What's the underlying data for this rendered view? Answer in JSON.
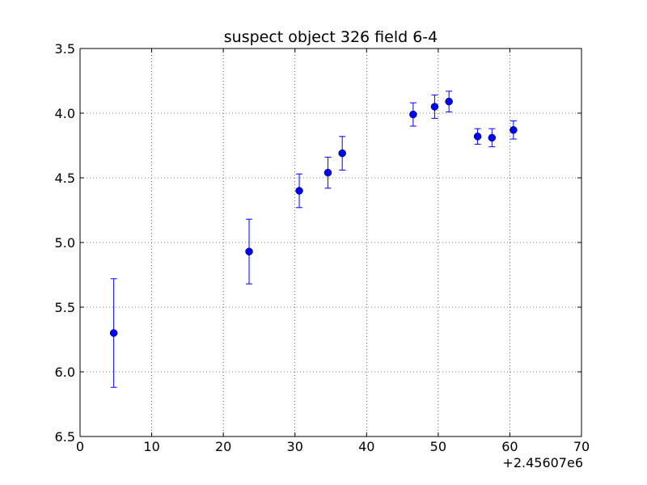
{
  "chart_data": {
    "type": "scatter",
    "title": "suspect object 326 field 6-4",
    "xlabel": "",
    "ylabel": "",
    "x_offset_label": "+2.45607e6",
    "xlim": [
      0,
      70
    ],
    "ylim": [
      6.5,
      3.5
    ],
    "y_inverted": true,
    "grid": true,
    "x_ticks": [
      0,
      10,
      20,
      30,
      40,
      50,
      60,
      70
    ],
    "x_tick_labels": [
      "0",
      "10",
      "20",
      "30",
      "40",
      "50",
      "60",
      "70"
    ],
    "y_ticks": [
      3.5,
      4.0,
      4.5,
      5.0,
      5.5,
      6.0,
      6.5
    ],
    "y_tick_labels": [
      "3.5",
      "4.0",
      "4.5",
      "5.0",
      "5.5",
      "6.0",
      "6.5"
    ],
    "marker_color": "#0000ff",
    "series": [
      {
        "x": [
          4.7,
          23.6,
          30.6,
          34.6,
          36.6,
          46.5,
          49.5,
          51.5,
          55.5,
          57.5,
          60.5
        ],
        "y": [
          5.7,
          5.07,
          4.6,
          4.46,
          4.31,
          4.01,
          3.95,
          3.91,
          4.18,
          4.19,
          4.13
        ],
        "yerr": [
          0.42,
          0.25,
          0.13,
          0.12,
          0.13,
          0.09,
          0.09,
          0.08,
          0.06,
          0.07,
          0.07
        ]
      }
    ]
  }
}
